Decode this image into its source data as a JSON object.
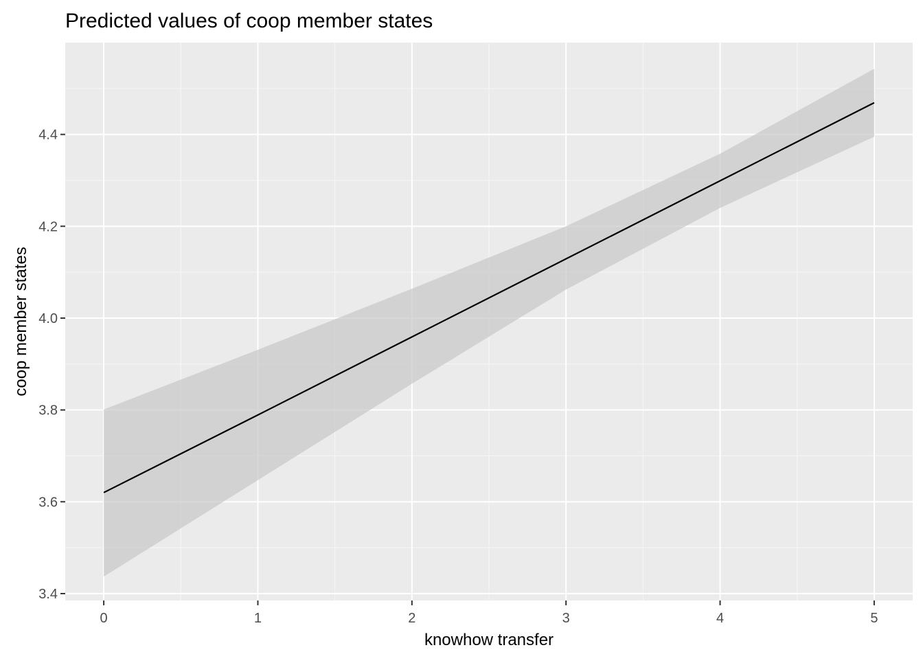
{
  "chart_data": {
    "type": "line",
    "title": "Predicted values of coop member states",
    "xlabel": "knowhow transfer",
    "ylabel": "coop member states",
    "xlim": [
      -0.25,
      5.25
    ],
    "ylim": [
      3.385,
      4.6
    ],
    "x_ticks": [
      0,
      1,
      2,
      3,
      4,
      5
    ],
    "x_tick_labels": [
      "0",
      "1",
      "2",
      "3",
      "4",
      "5"
    ],
    "x_minor_ticks": [
      0.5,
      1.5,
      2.5,
      3.5,
      4.5
    ],
    "y_ticks": [
      3.4,
      3.6,
      3.8,
      4.0,
      4.2,
      4.4
    ],
    "y_tick_labels": [
      "3.4",
      "3.6",
      "3.8",
      "4.0",
      "4.2",
      "4.4"
    ],
    "y_minor_ticks": [
      3.5,
      3.7,
      3.9,
      4.1,
      4.3,
      4.5
    ],
    "grid": true,
    "legend": "none",
    "series": [
      {
        "x": [
          0,
          1,
          2,
          3,
          4,
          5
        ],
        "values": [
          3.62,
          3.789,
          3.959,
          4.129,
          4.299,
          4.469
        ],
        "ci_lower": [
          3.437,
          3.647,
          3.857,
          4.062,
          4.24,
          4.395
        ],
        "ci_upper": [
          3.801,
          3.931,
          4.064,
          4.2,
          4.358,
          4.543
        ]
      }
    ],
    "colors": {
      "panel_background": "#ebebeb",
      "grid_major": "#ffffff",
      "grid_minor": "#f5f5f5",
      "line": "#000000",
      "ribbon": "#c8c8c8",
      "tick_text": "#4d4d4d",
      "tick_mark": "#333333"
    }
  }
}
